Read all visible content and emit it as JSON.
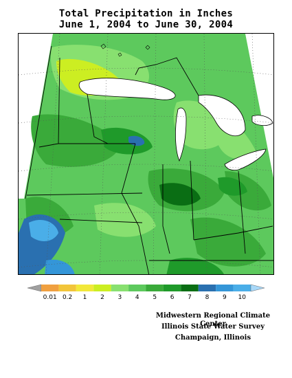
{
  "header": {
    "title_line1": "Total Precipitation in Inches",
    "title_line2": "June 1, 2004 to June 30, 2004"
  },
  "legend": {
    "ticks": [
      {
        "label": "0.01",
        "color": "#f0a040"
      },
      {
        "label": "0.2",
        "color": "#f2c53a"
      },
      {
        "label": "1",
        "color": "#f2e83a"
      },
      {
        "label": "2",
        "color": "#ccee22"
      },
      {
        "label": "3",
        "color": "#88e070"
      },
      {
        "label": "4",
        "color": "#5dc95d"
      },
      {
        "label": "5",
        "color": "#3aaa3a"
      },
      {
        "label": "6",
        "color": "#1f9a2a"
      },
      {
        "label": "7",
        "color": "#0a6e14"
      },
      {
        "label": "8",
        "color": "#2a70b0"
      },
      {
        "label": "9",
        "color": "#3496d8"
      },
      {
        "label": "10",
        "color": "#4aaee8"
      }
    ],
    "low_color": "#a0a0a0",
    "high_color": "#a8d8f8"
  },
  "credits": {
    "line1": "Midwestern Regional Climate Center",
    "line2": "Illinois State Water Survey",
    "line3": "Champaign, Illinois"
  },
  "colors": {
    "lake": "#ffffff",
    "border": "#000000",
    "grid": "#555555"
  }
}
